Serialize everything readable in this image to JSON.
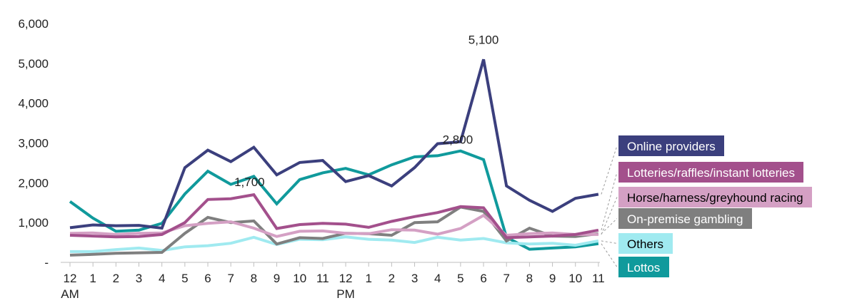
{
  "chart_data": {
    "type": "line",
    "title": "",
    "xlabel": "",
    "ylabel": "",
    "ylim": [
      0,
      6000
    ],
    "y_ticks": [
      {
        "value": 0,
        "label": "-"
      },
      {
        "value": 1000,
        "label": "1,000"
      },
      {
        "value": 2000,
        "label": "2,000"
      },
      {
        "value": 3000,
        "label": "3,000"
      },
      {
        "value": 4000,
        "label": "4,000"
      },
      {
        "value": 5000,
        "label": "5,000"
      },
      {
        "value": 6000,
        "label": "6,000"
      }
    ],
    "categories": [
      "12",
      "1",
      "2",
      "3",
      "4",
      "5",
      "6",
      "7",
      "8",
      "9",
      "10",
      "11",
      "12",
      "1",
      "2",
      "3",
      "4",
      "5",
      "6",
      "7",
      "8",
      "9",
      "10",
      "11"
    ],
    "period_labels": [
      {
        "index": 0,
        "label": "AM"
      },
      {
        "index": 12,
        "label": "PM"
      }
    ],
    "grid": false,
    "legend_position": "right",
    "series": [
      {
        "name": "Online providers",
        "color": "#3b3f7d",
        "values": [
          870,
          940,
          920,
          930,
          860,
          2380,
          2820,
          2530,
          2890,
          2200,
          2510,
          2560,
          2030,
          2180,
          1920,
          2380,
          2980,
          3030,
          5100,
          1920,
          1560,
          1280,
          1610,
          1710
        ]
      },
      {
        "name": "Lotteries/raffles/instant lotteries",
        "color": "#a3508c",
        "values": [
          680,
          660,
          640,
          650,
          700,
          1000,
          1580,
          1600,
          1700,
          850,
          950,
          980,
          960,
          880,
          1030,
          1150,
          1250,
          1400,
          1370,
          620,
          640,
          660,
          700,
          810
        ]
      },
      {
        "name": "Horse/harness/greyhound racing",
        "color": "#d4a0c4",
        "values": [
          730,
          740,
          700,
          730,
          740,
          920,
          980,
          1020,
          860,
          650,
          780,
          790,
          730,
          720,
          820,
          810,
          710,
          850,
          1180,
          680,
          720,
          740,
          700,
          700
        ]
      },
      {
        "name": "On-premise gambling",
        "color": "#7f7f7f",
        "values": [
          180,
          200,
          230,
          240,
          250,
          730,
          1130,
          1000,
          1040,
          460,
          620,
          600,
          730,
          720,
          680,
          1000,
          1020,
          1390,
          1280,
          540,
          860,
          660,
          650,
          720
        ]
      },
      {
        "name": "Others",
        "color": "#a0eaf0",
        "values": [
          270,
          270,
          320,
          360,
          300,
          390,
          420,
          480,
          630,
          450,
          580,
          570,
          640,
          580,
          560,
          500,
          630,
          560,
          600,
          490,
          460,
          480,
          430,
          540
        ]
      },
      {
        "name": "Lottos",
        "color": "#109a9c",
        "values": [
          1530,
          1110,
          780,
          810,
          980,
          1720,
          2290,
          1960,
          2160,
          1470,
          2080,
          2250,
          2360,
          2200,
          2450,
          2650,
          2680,
          2800,
          2580,
          630,
          330,
          360,
          390,
          470
        ]
      }
    ],
    "annotations": [
      {
        "series": "Online providers",
        "index": 18,
        "text": "5,100"
      },
      {
        "series": "Lottos",
        "index": 17,
        "text": "2,800"
      },
      {
        "series": "Lotteries/raffles/instant lotteries",
        "index": 8,
        "text": "1,700"
      }
    ]
  }
}
